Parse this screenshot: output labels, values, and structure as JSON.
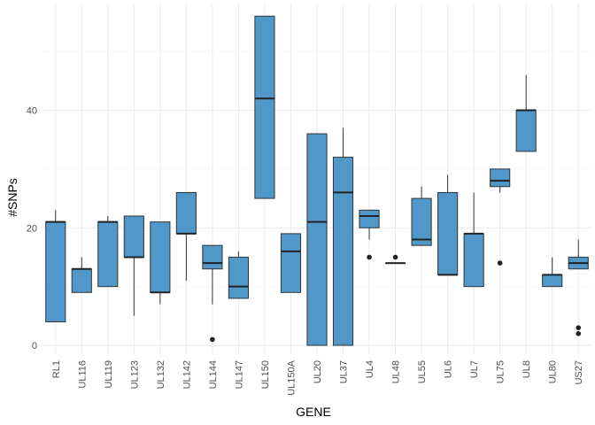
{
  "chart_data": {
    "type": "boxplot",
    "xlabel": "GENE",
    "ylabel": "#SNPs",
    "ylim": [
      -1.5,
      58
    ],
    "y_ticks": [
      0,
      20,
      40
    ],
    "grid": true,
    "fill_color": "#4f98c9",
    "stroke_color": "#333333",
    "categories": [
      "RL1",
      "UL116",
      "UL119",
      "UL123",
      "UL132",
      "UL142",
      "UL144",
      "UL147",
      "UL150",
      "UL150A",
      "UL20",
      "UL37",
      "UL4",
      "UL48",
      "UL55",
      "UL6",
      "UL7",
      "UL75",
      "UL8",
      "UL80",
      "US27"
    ],
    "boxes": [
      {
        "gene": "RL1",
        "min": 4,
        "q1": 4,
        "median": 21,
        "q3": 21,
        "max": 23,
        "outliers": []
      },
      {
        "gene": "UL116",
        "min": 9,
        "q1": 9,
        "median": 13,
        "q3": 13,
        "max": 15,
        "outliers": []
      },
      {
        "gene": "UL119",
        "min": 10,
        "q1": 10,
        "median": 21,
        "q3": 21,
        "max": 22,
        "outliers": []
      },
      {
        "gene": "UL123",
        "min": 5,
        "q1": 15,
        "median": 15,
        "q3": 22,
        "max": 22,
        "outliers": []
      },
      {
        "gene": "UL132",
        "min": 7,
        "q1": 9,
        "median": 9,
        "q3": 21,
        "max": 21,
        "outliers": []
      },
      {
        "gene": "UL142",
        "min": 11,
        "q1": 19,
        "median": 19,
        "q3": 26,
        "max": 26,
        "outliers": []
      },
      {
        "gene": "UL144",
        "min": 7,
        "q1": 13,
        "median": 14,
        "q3": 17,
        "max": 17,
        "outliers": [
          1
        ]
      },
      {
        "gene": "UL147",
        "min": 8,
        "q1": 8,
        "median": 10,
        "q3": 15,
        "max": 16,
        "outliers": []
      },
      {
        "gene": "UL150",
        "min": 25,
        "q1": 25,
        "median": 42,
        "q3": 56,
        "max": 56,
        "outliers": []
      },
      {
        "gene": "UL150A",
        "min": 9,
        "q1": 9,
        "median": 16,
        "q3": 19,
        "max": 19,
        "outliers": []
      },
      {
        "gene": "UL20",
        "min": 0,
        "q1": 0,
        "median": 21,
        "q3": 36,
        "max": 36,
        "outliers": []
      },
      {
        "gene": "UL37",
        "min": 0,
        "q1": 0,
        "median": 26,
        "q3": 32,
        "max": 37,
        "outliers": []
      },
      {
        "gene": "UL4",
        "min": 18,
        "q1": 20,
        "median": 22,
        "q3": 23,
        "max": 23,
        "outliers": [
          15
        ]
      },
      {
        "gene": "UL48",
        "min": 14,
        "q1": 14,
        "median": 14,
        "q3": 14,
        "max": 14,
        "outliers": [
          15
        ]
      },
      {
        "gene": "UL55",
        "min": 17,
        "q1": 17,
        "median": 18,
        "q3": 25,
        "max": 27,
        "outliers": []
      },
      {
        "gene": "UL6",
        "min": 12,
        "q1": 12,
        "median": 12,
        "q3": 26,
        "max": 29,
        "outliers": []
      },
      {
        "gene": "UL7",
        "min": 10,
        "q1": 10,
        "median": 19,
        "q3": 19,
        "max": 26,
        "outliers": []
      },
      {
        "gene": "UL75",
        "min": 26,
        "q1": 27,
        "median": 28,
        "q3": 30,
        "max": 30,
        "outliers": [
          14
        ]
      },
      {
        "gene": "UL8",
        "min": 33,
        "q1": 33,
        "median": 40,
        "q3": 40,
        "max": 46,
        "outliers": []
      },
      {
        "gene": "UL80",
        "min": 10,
        "q1": 10,
        "median": 12,
        "q3": 12,
        "max": 15,
        "outliers": []
      },
      {
        "gene": "US27",
        "min": 13,
        "q1": 13,
        "median": 14,
        "q3": 15,
        "max": 18,
        "outliers": [
          2,
          3
        ]
      }
    ]
  }
}
